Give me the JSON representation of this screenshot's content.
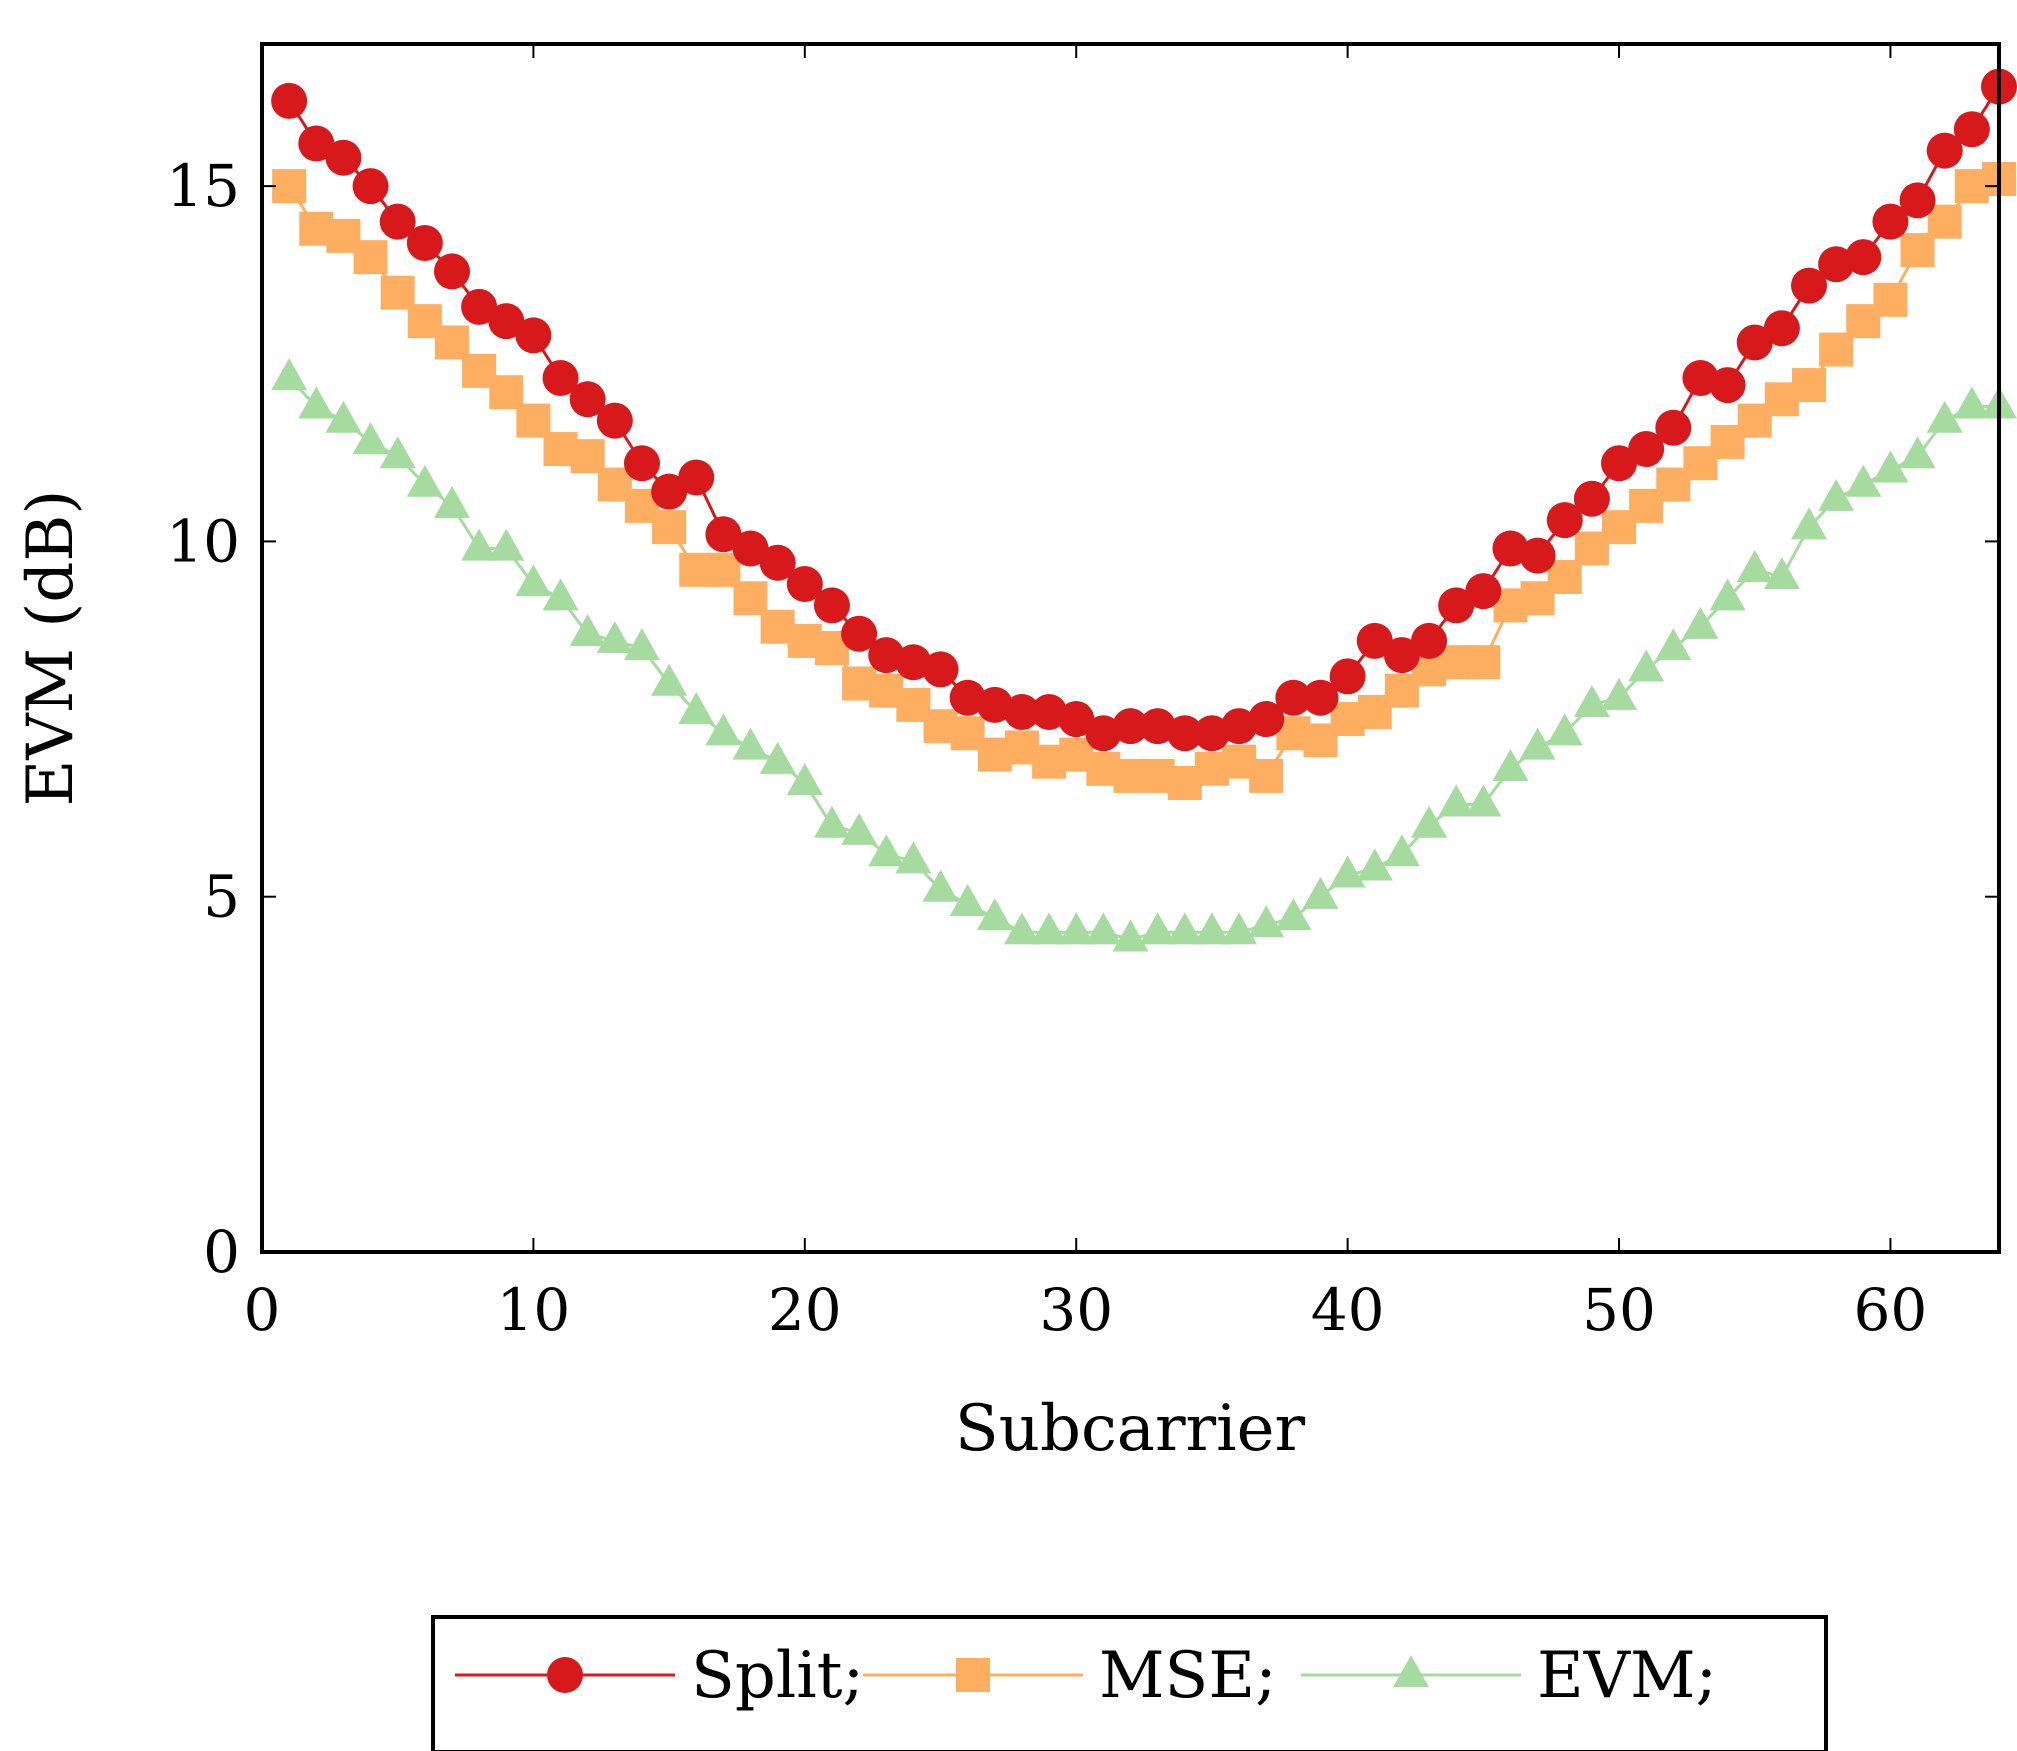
{
  "chart_data": {
    "type": "line",
    "title": "",
    "xlabel": "Subcarrier",
    "ylabel": "EVM (dB)",
    "xlim": [
      0,
      64
    ],
    "ylim": [
      0,
      17
    ],
    "xticks": [
      0,
      10,
      20,
      30,
      40,
      50,
      60
    ],
    "yticks": [
      0,
      5,
      10,
      15
    ],
    "grid": false,
    "legend_position": "bottom-center",
    "x": [
      1,
      2,
      3,
      4,
      5,
      6,
      7,
      8,
      9,
      10,
      11,
      12,
      13,
      14,
      15,
      16,
      17,
      18,
      19,
      20,
      21,
      22,
      23,
      24,
      25,
      26,
      27,
      28,
      29,
      30,
      31,
      32,
      33,
      34,
      35,
      36,
      37,
      38,
      39,
      40,
      41,
      42,
      43,
      44,
      45,
      46,
      47,
      48,
      49,
      50,
      51,
      52,
      53,
      54,
      55,
      56,
      57,
      58,
      59,
      60,
      61,
      62,
      63,
      64
    ],
    "series": [
      {
        "name": "Split;",
        "color": "#d7191c",
        "marker": "circle",
        "values": [
          16.2,
          15.6,
          15.4,
          15.0,
          14.5,
          14.2,
          13.8,
          13.3,
          13.1,
          12.9,
          12.3,
          12.0,
          11.7,
          11.1,
          10.7,
          10.9,
          10.1,
          9.9,
          9.7,
          9.4,
          9.1,
          8.7,
          8.4,
          8.3,
          8.2,
          7.8,
          7.7,
          7.6,
          7.6,
          7.5,
          7.3,
          7.4,
          7.4,
          7.3,
          7.3,
          7.4,
          7.5,
          7.8,
          7.8,
          8.1,
          8.6,
          8.4,
          8.6,
          9.1,
          9.3,
          9.9,
          9.8,
          10.3,
          10.6,
          11.1,
          11.3,
          11.6,
          12.3,
          12.2,
          12.8,
          13.0,
          13.6,
          13.9,
          14.0,
          14.5,
          14.8,
          15.5,
          15.8,
          16.4
        ]
      },
      {
        "name": "MSE;",
        "color": "#fdae61",
        "marker": "square",
        "values": [
          15.0,
          14.4,
          14.3,
          14.0,
          13.5,
          13.1,
          12.8,
          12.4,
          12.1,
          11.7,
          11.3,
          11.2,
          10.8,
          10.5,
          10.2,
          9.6,
          9.6,
          9.2,
          8.8,
          8.6,
          8.5,
          8.0,
          7.9,
          7.7,
          7.4,
          7.3,
          7.0,
          7.1,
          6.9,
          7.0,
          6.8,
          6.7,
          6.7,
          6.6,
          6.8,
          6.9,
          6.7,
          7.3,
          7.2,
          7.5,
          7.6,
          7.9,
          8.2,
          8.3,
          8.3,
          9.1,
          9.2,
          9.5,
          9.9,
          10.2,
          10.5,
          10.8,
          11.1,
          11.4,
          11.7,
          12.0,
          12.2,
          12.7,
          13.1,
          13.4,
          14.1,
          14.5,
          15.0,
          15.1
        ]
      },
      {
        "name": "EVM;",
        "color": "#a6dba0",
        "marker": "triangle",
        "values": [
          12.3,
          11.9,
          11.7,
          11.4,
          11.2,
          10.8,
          10.5,
          9.9,
          9.9,
          9.4,
          9.2,
          8.7,
          8.6,
          8.5,
          8.0,
          7.6,
          7.3,
          7.1,
          6.9,
          6.6,
          6.0,
          5.9,
          5.6,
          5.5,
          5.1,
          4.9,
          4.7,
          4.5,
          4.5,
          4.5,
          4.5,
          4.4,
          4.5,
          4.5,
          4.5,
          4.5,
          4.6,
          4.7,
          5.0,
          5.3,
          5.4,
          5.6,
          6.0,
          6.3,
          6.3,
          6.8,
          7.1,
          7.3,
          7.7,
          7.8,
          8.2,
          8.5,
          8.8,
          9.2,
          9.6,
          9.5,
          10.2,
          10.6,
          10.8,
          11.0,
          11.2,
          11.7,
          11.9,
          11.9
        ]
      }
    ]
  }
}
